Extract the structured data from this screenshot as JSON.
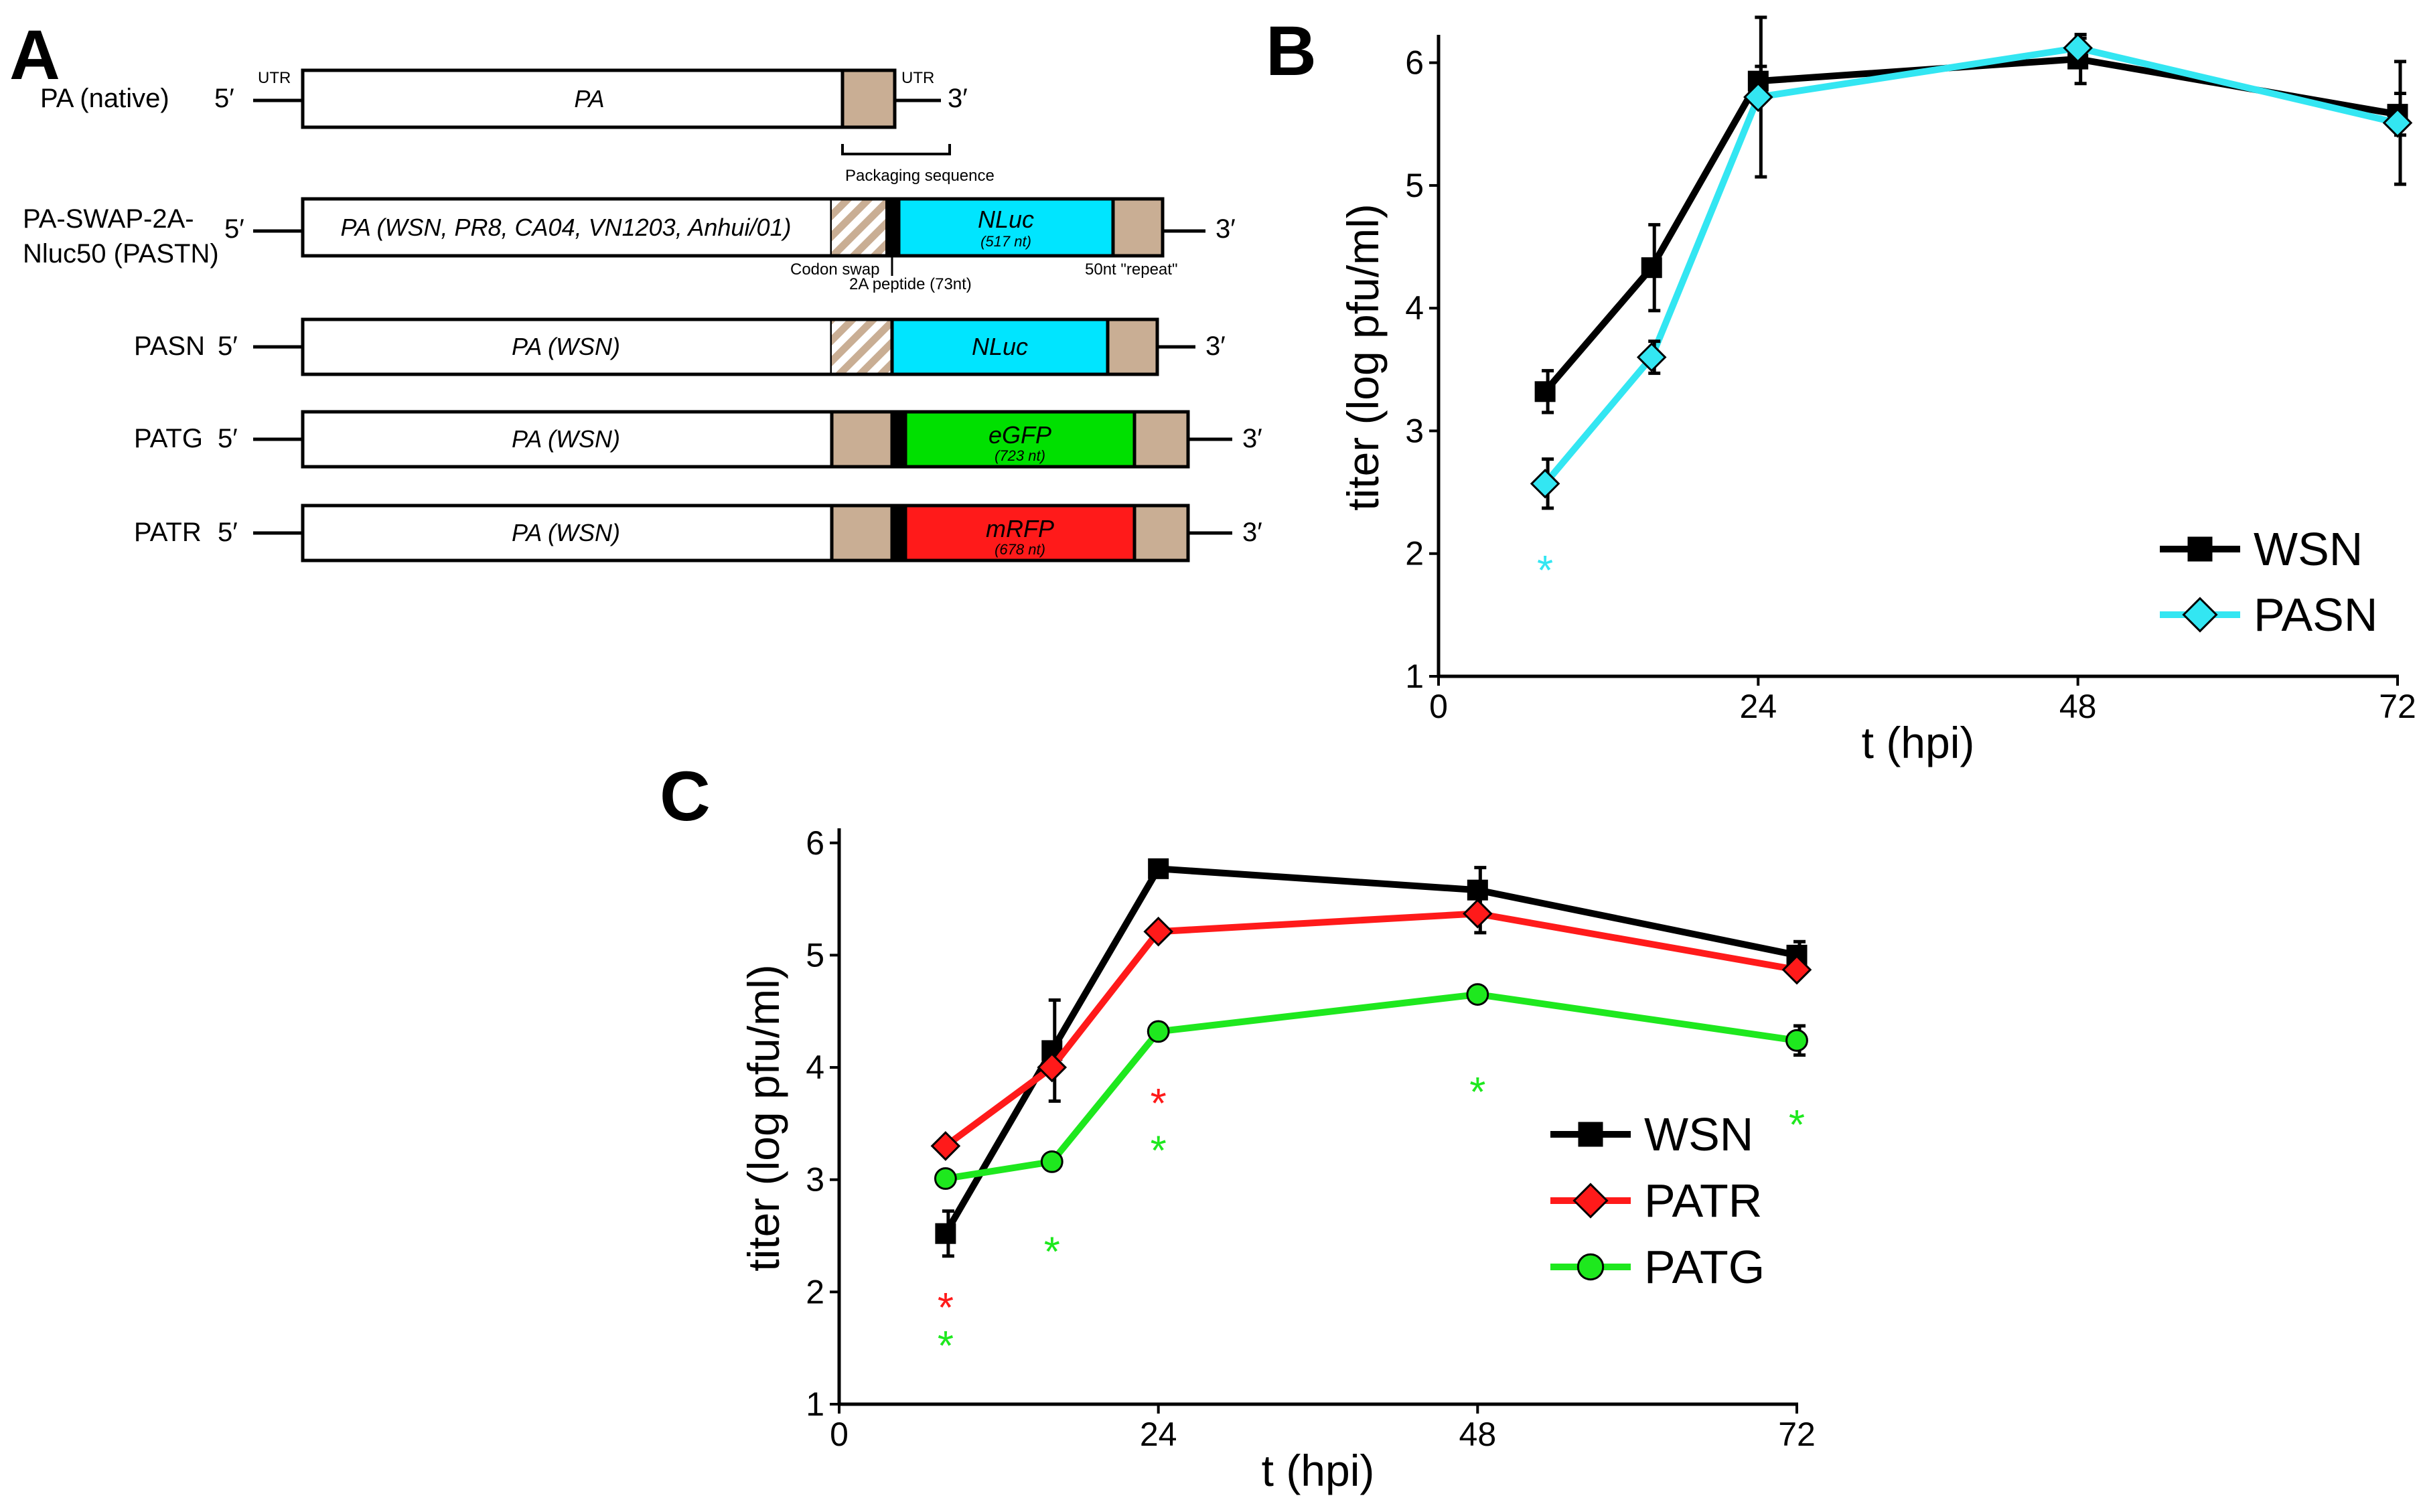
{
  "panel_a": {
    "letter": "A",
    "utr_label": "UTR",
    "five_prime": "5′",
    "three_prime": "3′",
    "packaging_label": "Packaging sequence",
    "codon_swap_label": "Codon swap",
    "peptide_label": "2A peptide (73nt)",
    "repeat_label": "50nt \"repeat\"",
    "constructs": [
      {
        "name_lines": [
          "PA (native)"
        ],
        "segment": "PA",
        "reporter": "",
        "reporter_sub": "",
        "color": ""
      },
      {
        "name_lines": [
          "PA-SWAP-2A-",
          "Nluc50 (PASTN)"
        ],
        "segment": "PA (WSN, PR8, CA04, VN1203, Anhui/01)",
        "reporter": "NLuc",
        "reporter_sub": "(517 nt)",
        "color": "#00e5ff"
      },
      {
        "name_lines": [
          "PASN"
        ],
        "segment": "PA (WSN)",
        "reporter": "NLuc",
        "reporter_sub": "",
        "color": "#00e5ff"
      },
      {
        "name_lines": [
          "PATG"
        ],
        "segment": "PA (WSN)",
        "reporter": "eGFP",
        "reporter_sub": "(723 nt)",
        "color": "#00e000"
      },
      {
        "name_lines": [
          "PATR"
        ],
        "segment": "PA (WSN)",
        "reporter": "mRFP",
        "reporter_sub": "(678 nt)",
        "color": "#ff1a1a"
      }
    ],
    "colors": {
      "packaging": "#c9ae94",
      "box_fill": "#ffffff"
    }
  },
  "chart_data": [
    {
      "panel": "B",
      "type": "line",
      "xlabel": "t (hpi)",
      "ylabel": "titer (log pfu/ml)",
      "x_ticks": [
        0,
        24,
        48,
        72
      ],
      "y_ticks": [
        1,
        2,
        3,
        4,
        5,
        6
      ],
      "xlim": [
        0,
        72
      ],
      "ylim": [
        1,
        6.2
      ],
      "legend_position": "bottom-right",
      "series": [
        {
          "name": "WSN",
          "color": "#000000",
          "marker": "square",
          "x": [
            8,
            16,
            24,
            48,
            72
          ],
          "y": [
            3.32,
            4.33,
            5.85,
            6.03,
            5.58
          ],
          "err": [
            0.17,
            0.35,
            0.12,
            0.2,
            0.17
          ]
        },
        {
          "name": "PASN",
          "color": "#33e6f2",
          "marker": "diamond",
          "x": [
            8,
            16,
            24,
            48,
            72
          ],
          "y": [
            2.57,
            3.6,
            5.72,
            6.12,
            5.51
          ],
          "err": [
            0.2,
            0.13,
            0.65,
            0.08,
            0.5
          ]
        }
      ],
      "annotations": [
        {
          "text": "*",
          "x": 8,
          "y": 1.9,
          "color": "#33e6f2"
        }
      ]
    },
    {
      "panel": "C",
      "type": "line",
      "xlabel": "t (hpi)",
      "ylabel": "titer (log pfu/ml)",
      "x_ticks": [
        0,
        24,
        48,
        72
      ],
      "y_ticks": [
        1,
        2,
        3,
        4,
        5,
        6
      ],
      "xlim": [
        0,
        72
      ],
      "ylim": [
        1,
        6.1
      ],
      "legend_position": "bottom-right",
      "series": [
        {
          "name": "WSN",
          "color": "#000000",
          "marker": "square",
          "x": [
            8,
            16,
            24,
            48,
            72
          ],
          "y": [
            2.52,
            4.15,
            5.77,
            5.58,
            5.0
          ],
          "err": [
            0.2,
            0.45,
            0.05,
            0.2,
            0.12
          ]
        },
        {
          "name": "PATR",
          "color": "#ff1a1a",
          "marker": "diamond",
          "x": [
            8,
            16,
            24,
            48,
            72
          ],
          "y": [
            3.3,
            4.0,
            5.21,
            5.37,
            4.87
          ],
          "err": [
            0.0,
            0.0,
            0.0,
            0.17,
            0.0
          ]
        },
        {
          "name": "PATG",
          "color": "#1ee81e",
          "marker": "circle",
          "x": [
            8,
            16,
            24,
            48,
            72
          ],
          "y": [
            3.01,
            3.16,
            4.32,
            4.65,
            4.24
          ],
          "err": [
            0.0,
            0.0,
            0.0,
            0.0,
            0.13
          ]
        }
      ],
      "annotations": [
        {
          "text": "*",
          "x": 8,
          "y": 1.9,
          "color": "#ff1a1a"
        },
        {
          "text": "*",
          "x": 8,
          "y": 1.56,
          "color": "#1ee81e"
        },
        {
          "text": "*",
          "x": 16,
          "y": 2.4,
          "color": "#1ee81e"
        },
        {
          "text": "*",
          "x": 24,
          "y": 3.72,
          "color": "#ff1a1a"
        },
        {
          "text": "*",
          "x": 24,
          "y": 3.3,
          "color": "#1ee81e"
        },
        {
          "text": "*",
          "x": 48,
          "y": 3.82,
          "color": "#1ee81e"
        },
        {
          "text": "*",
          "x": 72,
          "y": 3.53,
          "color": "#1ee81e"
        }
      ]
    }
  ]
}
